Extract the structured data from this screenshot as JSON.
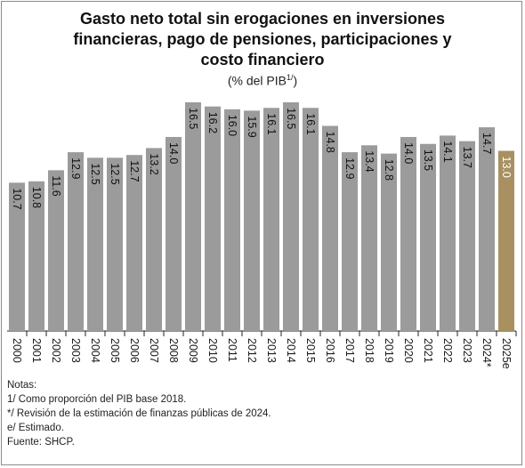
{
  "chart_data": {
    "type": "bar",
    "title_lines": [
      "Gasto neto total sin erogaciones en inversiones",
      "financieras, pago de pensiones, participaciones y",
      "costo financiero"
    ],
    "subtitle": "(% del PIB",
    "subtitle_sup": "1/",
    "subtitle_close": ")",
    "categories": [
      "2000",
      "2001",
      "2002",
      "2003",
      "2004",
      "2005",
      "2006",
      "2007",
      "2008",
      "2009",
      "2010",
      "2011",
      "2012",
      "2013",
      "2014",
      "2015",
      "2016",
      "2017",
      "2018",
      "2019",
      "2020",
      "2021",
      "2022",
      "2023",
      "2024*",
      "2025e"
    ],
    "values": [
      10.7,
      10.8,
      11.6,
      12.9,
      12.5,
      12.5,
      12.7,
      13.2,
      14.0,
      16.5,
      16.2,
      16.0,
      15.9,
      16.1,
      16.5,
      16.1,
      14.8,
      12.9,
      13.4,
      12.8,
      14.0,
      13.5,
      14.1,
      13.7,
      14.7,
      13.0
    ],
    "data_labels": [
      "10.7",
      "10.8",
      "11.6",
      "12.9",
      "12.5",
      "12.5",
      "12.7",
      "13.2",
      "14.0",
      "16.5",
      "16.2",
      "16.0",
      "15.9",
      "16.1",
      "16.5",
      "16.1",
      "14.8",
      "12.9",
      "13.4",
      "12.8",
      "14.0",
      "13.5",
      "14.1",
      "13.7",
      "14.7",
      "13.0"
    ],
    "highlight_index": 25,
    "colors": {
      "bar": "#9b9b9b",
      "highlight": "#a89060",
      "label_dark": "#111111",
      "label_light": "#ffffff"
    },
    "ylim": [
      0,
      17.4
    ],
    "grid": false,
    "legend": "none"
  },
  "notes": {
    "heading": "Notas:",
    "lines": [
      "1/ Como proporción del PIB base 2018.",
      "*/ Revisión de la estimación de finanzas públicas de 2024.",
      "e/ Estimado.",
      "Fuente: SHCP."
    ]
  }
}
